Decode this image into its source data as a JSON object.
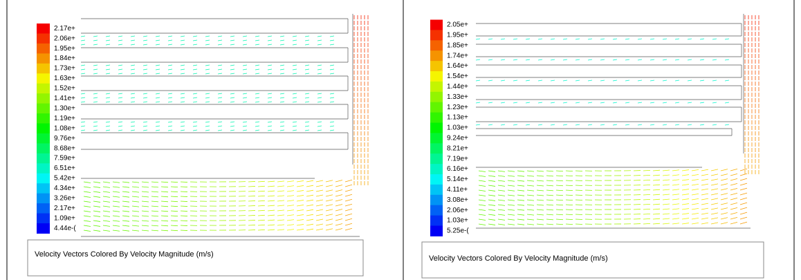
{
  "panels": [
    {
      "legend_labels": [
        "2.17e+",
        "2.06e+",
        "1.95e+",
        "1.84e+",
        "1.73e+",
        "1.63e+",
        "1.52e+",
        "1.41e+",
        "1.30e+",
        "1.19e+",
        "1.08e+",
        "9.76e+",
        "8.68e+",
        "7.59e+",
        "6.51e+",
        "5.42e+",
        "4.34e+",
        "3.26e+",
        "2.17e+",
        "1.09e+",
        "4.44e-("
      ],
      "caption": "Velocity Vectors Colored By Velocity Magnitude (m/s)"
    },
    {
      "legend_labels": [
        "2.05e+",
        "1.95e+",
        "1.85e+",
        "1.74e+",
        "1.64e+",
        "1.54e+",
        "1.44e+",
        "1.33e+",
        "1.23e+",
        "1.13e+",
        "1.03e+",
        "9.24e+",
        "8.21e+",
        "7.19e+",
        "6.16e+",
        "5.14e+",
        "4.11e+",
        "3.08e+",
        "2.06e+",
        "1.03e+",
        "5.25e-("
      ],
      "caption": "Velocity Vectors Colored By Velocity Magnitude (m/s)"
    }
  ]
}
